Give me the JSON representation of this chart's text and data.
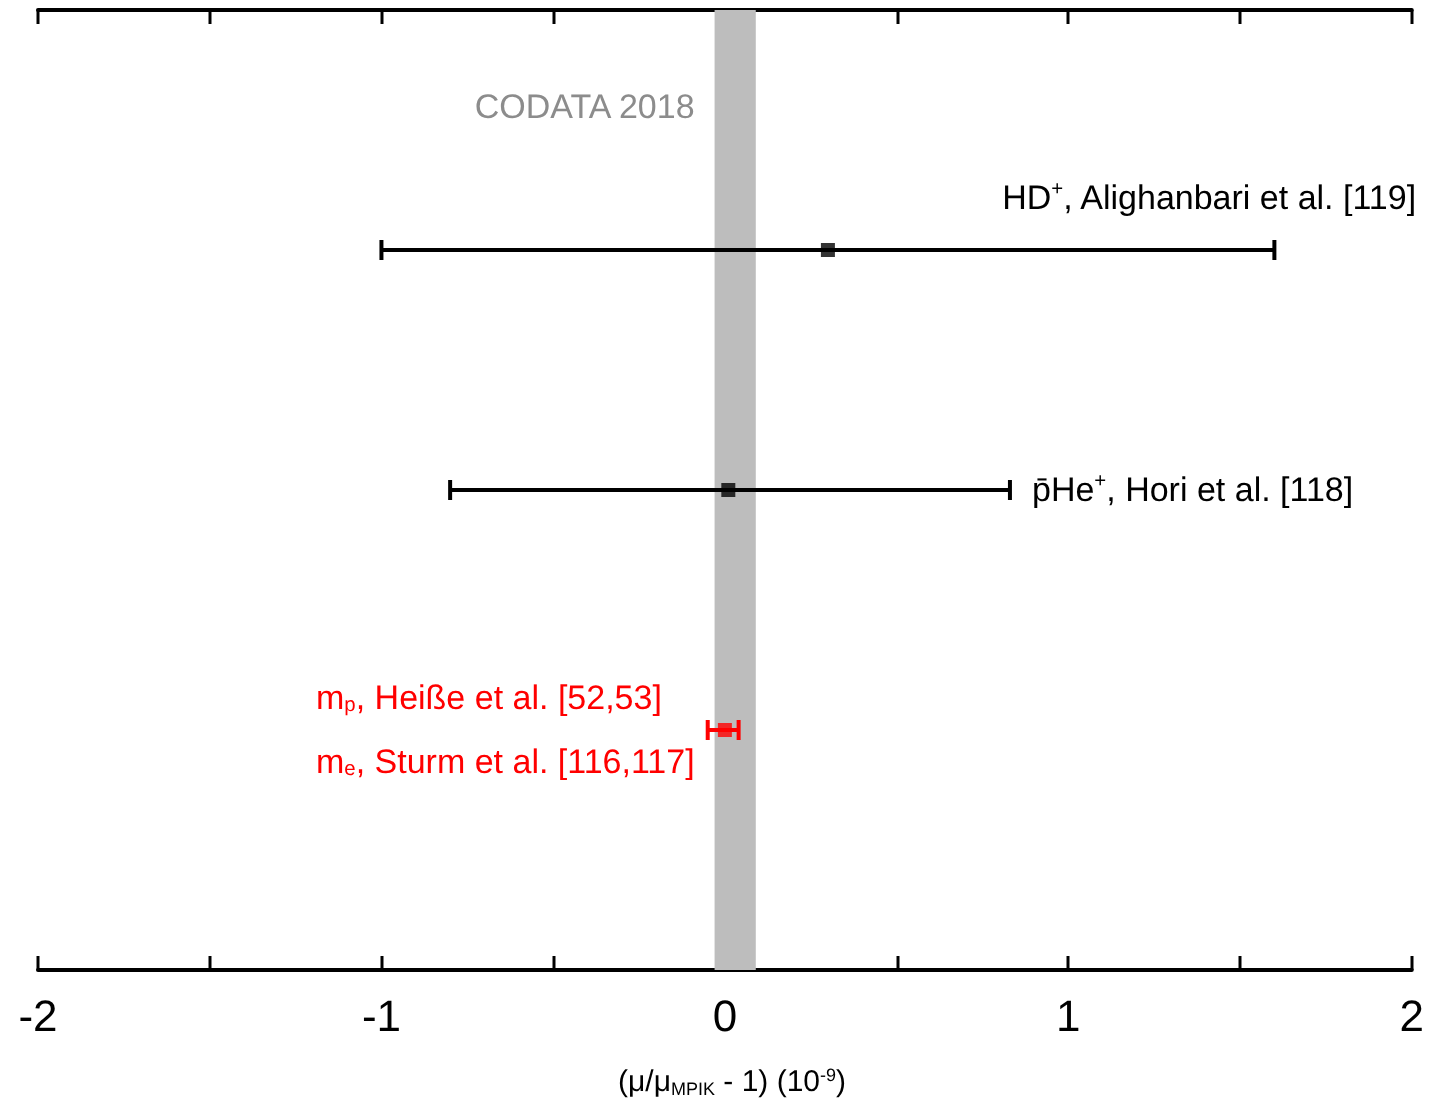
{
  "chart_data": {
    "type": "scatter",
    "orientation": "horizontal",
    "xlabel": "(μ/μ$_{MPIK}$ - 1) (10$^{-9}$)",
    "categories": [
      null,
      null,
      null
    ],
    "values": [
      0.3,
      0.01,
      0.0
    ],
    "errors": [
      [
        -1.0,
        1.6
      ],
      [
        -0.8,
        0.83
      ],
      [
        -0.05,
        0.04
      ]
    ],
    "colors": [
      "#000000",
      "#000000",
      "#ff0000"
    ],
    "marker": "square",
    "xlim": [
      -2,
      2
    ],
    "xticks": [
      -2,
      {
        "value": -1.5,
        "label": null
      },
      -1,
      {
        "value": -0.5,
        "label": null
      },
      0,
      {
        "value": 0.5,
        "label": null
      },
      1,
      {
        "value": 1.5,
        "label": null
      },
      2
    ],
    "tick_labels": "x",
    "bands": [
      {
        "axis": "x",
        "from": -0.03,
        "to": 0.09,
        "label": "CODATA 2018",
        "color": "#bdbdbd"
      }
    ],
    "annotations": [
      "HD$^{+}$, Alighanbari et al. [119]",
      "p̄He$^{+}$, Hori et al. [118]",
      "m$_{p}$, Heiße et al. [52,53]",
      "m$_{e}$, Sturm et al. [116,117]"
    ]
  }
}
